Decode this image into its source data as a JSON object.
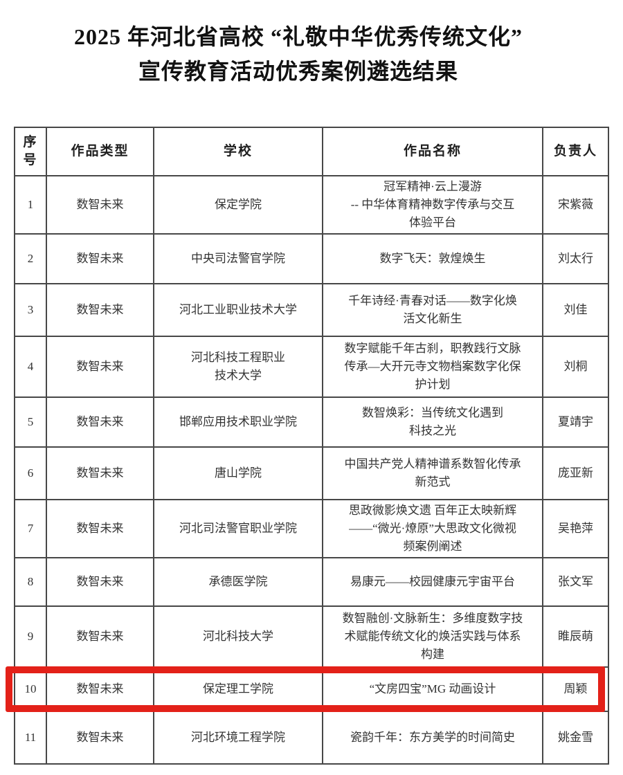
{
  "page": {
    "title_line1": "2025 年河北省高校 “礼敬中华优秀传统文化”",
    "title_line2": "宣传教育活动优秀案例遴选结果"
  },
  "table": {
    "headers": {
      "no": "序\n号",
      "type": "作品类型",
      "school": "学校",
      "work": "作品名称",
      "person": "负责人"
    },
    "rows": [
      {
        "no": "1",
        "type": "数智未来",
        "school": "保定学院",
        "work": "冠军精神·云上漫游\n-- 中华体育精神数字传承与交互\n体验平台",
        "person": "宋紫薇"
      },
      {
        "no": "2",
        "type": "数智未来",
        "school": "中央司法警官学院",
        "work": "数字飞天：敦煌焕生",
        "person": "刘太行"
      },
      {
        "no": "3",
        "type": "数智未来",
        "school": "河北工业职业技术大学",
        "work": "千年诗经·青春对话——数字化焕\n活文化新生",
        "person": "刘佳"
      },
      {
        "no": "4",
        "type": "数智未来",
        "school": "河北科技工程职业\n技术大学",
        "work": "数字赋能千年古刹，职教践行文脉\n传承—大开元寺文物档案数字化保\n护计划",
        "person": "刘桐"
      },
      {
        "no": "5",
        "type": "数智未来",
        "school": "邯郸应用技术职业学院",
        "work": "数智焕彩：当传统文化遇到\n科技之光",
        "person": "夏靖宇"
      },
      {
        "no": "6",
        "type": "数智未来",
        "school": "唐山学院",
        "work": "中国共产党人精神谱系数智化传承\n新范式",
        "person": "庞亚新"
      },
      {
        "no": "7",
        "type": "数智未来",
        "school": "河北司法警官职业学院",
        "work": "思政微影焕文遗 百年正太映新辉\n——“微光·燎原”大思政文化微视\n频案例阐述",
        "person": "吴艳萍"
      },
      {
        "no": "8",
        "type": "数智未来",
        "school": "承德医学院",
        "work": "易康元——校园健康元宇宙平台",
        "person": "张文军"
      },
      {
        "no": "9",
        "type": "数智未来",
        "school": "河北科技大学",
        "work": "数智融创·文脉新生：多维度数字技\n术赋能传统文化的焕活实践与体系\n构建",
        "person": "睢辰萌"
      },
      {
        "no": "10",
        "type": "数智未来",
        "school": "保定理工学院",
        "work": "“文房四宝”MG 动画设计",
        "person": "周颖",
        "highlighted": true
      },
      {
        "no": "11",
        "type": "数智未来",
        "school": "河北环境工程学院",
        "work": "瓷韵千年：东方美学的时间简史",
        "person": "姚金雪"
      }
    ],
    "highlight": {
      "row_no": "10",
      "color": "#e32119"
    }
  }
}
